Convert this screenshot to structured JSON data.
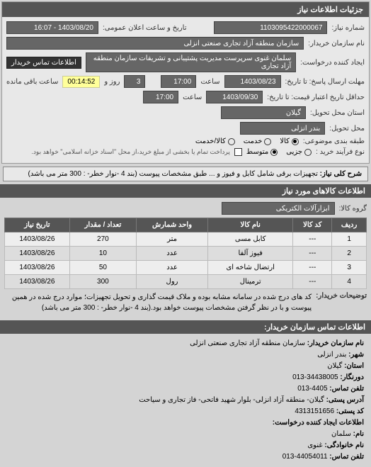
{
  "panel_title": "جزئیات اطلاعات نیاز",
  "request_no_label": "شماره نیاز:",
  "request_no": "1103095422000067",
  "announce_label": "تاریخ و ساعت اعلان عمومی:",
  "announce_value": "1403/08/20 - 16:07",
  "buyer_label": "نام سازمان خریدار:",
  "buyer_value": "سازمان منطقه آزاد تجاری صنعتی انزلی",
  "requester_label": "ایجاد کننده درخواست:",
  "requester_value": "سلمان غنوی سرپرست مدیریت پشتیبانی و تشریفات سازمان منطقه آزاد تجاری",
  "info_btn": "اطلاعات تماس خریدار",
  "deadline_label": "مهلت ارسال پاسخ: تا تاریخ:",
  "deadline_date": "1403/08/23",
  "deadline_time_label": "ساعت",
  "deadline_time": "17:00",
  "days_count": "3",
  "days_label": "روز و",
  "countdown": "00:14:52",
  "remaining_label": "ساعت باقی مانده",
  "validity_label": "حداقل تاریخ اعتبار قیمت: تا تاریخ:",
  "validity_date": "1403/09/30",
  "validity_time": "17:00",
  "province_label": "استان محل تحویل:",
  "province_value": "گیلان",
  "city_label": "محل تحویل:",
  "city_value": "بندر انزلی",
  "pack_label": "طبقه بندی موضوعی:",
  "pack_opts": {
    "goods": "کالا",
    "service": "خدمت",
    "both": "کالا/خدمت"
  },
  "process_label": "نوع فرآیند خرید :",
  "process_opts": {
    "small": "جزیی",
    "medium": "متوسط"
  },
  "process_note": "پرداخت تمام یا بخشی از مبلغ خرید،از محل \"اسناد خزانه اسلامی\" خواهد بود.",
  "general_label": "شرح کلی نیاز:",
  "general_value": "تجهیزات برقی شامل کابل و فیوز و ... طبق مشخصات پیوست (بند 4 -نوار خطر- : 300 متر می باشد)",
  "goods_section": "اطلاعات کالاهای مورد نیاز",
  "group_label": "گروه کالا:",
  "group_value": "ابزارآلات الکتریکی",
  "table": {
    "headers": [
      "ردیف",
      "کد کالا",
      "نام کالا",
      "واحد شمارش",
      "تعداد / مقدار",
      "تاریخ نیاز"
    ],
    "rows": [
      [
        "1",
        "---",
        "کابل مسی",
        "متر",
        "270",
        "1403/08/26"
      ],
      [
        "2",
        "---",
        "فیوز آلفا",
        "عدد",
        "10",
        "1403/08/26"
      ],
      [
        "3",
        "---",
        "ارتضال شاخه ای",
        "عدد",
        "50",
        "1403/08/26"
      ],
      [
        "4",
        "---",
        "ترمینال",
        "رول",
        "300",
        "1403/08/26"
      ]
    ]
  },
  "buyer_note_label": "توضیحات خریدار:",
  "buyer_note": "کد های درج شده در سامانه مشابه بوده و ملاک قیمت گذاری و تحویل تجهیزات؛ موارد درج شده در همین پیوست و با در نظر گرفتن مشخصات پیوست خواهد بود.(بند 4 -نوار خطر- : 300 متر می باشد)",
  "contact_section": "اطلاعات تماس سازمان خریدار:",
  "contact": {
    "org_label": "نام سازمان خریدار:",
    "org": "سازمان منطقه آزاد تجاری صنعتی انزلی",
    "city_label": "شهر:",
    "city": "بندر انزلی",
    "province_label": "استان:",
    "province": "گیلان",
    "postal_label": "دورنگار:",
    "postal": "34438005-013",
    "fax_label": "تلفن تماس:",
    "fax": "4405-013",
    "address_label": "آدرس پستی:",
    "address": "گیلان- منطقه آزاد انزلی- بلوار شهید فاتحی- فاز تجاری و سیاحت",
    "zip_label": "کد پستی:",
    "zip": "4313151656",
    "creator_section": "اطلاعات ایجاد کننده درخواست:",
    "name_label": "نام:",
    "name": "سلمان",
    "lname_label": "نام خانوادگی:",
    "lname": "غنوی",
    "phone_label": "تلفن تماس:",
    "phone": "44054011-013"
  }
}
